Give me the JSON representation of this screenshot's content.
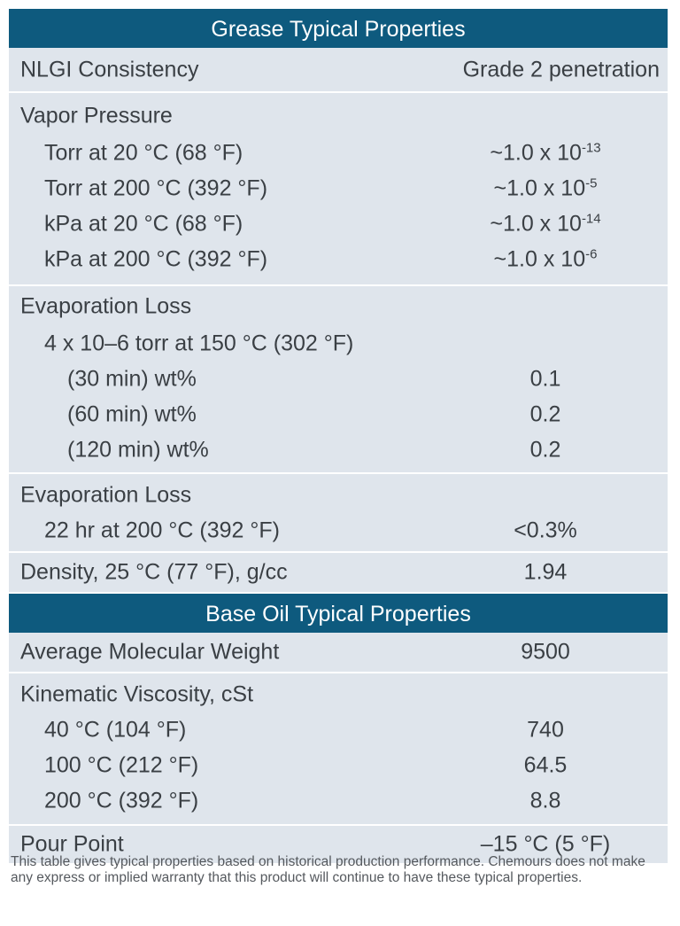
{
  "grease": {
    "header": "Grease Typical Properties",
    "nlgi": {
      "label": "NLGI Consistency",
      "value": "Grade 2 penetration"
    },
    "vapor": {
      "label": "Vapor Pressure",
      "rows": [
        {
          "label": "Torr at 20 °C (68 °F)",
          "base": "~1.0 x 10",
          "exp": "-13"
        },
        {
          "label": "Torr at 200 °C (392 °F)",
          "base": "~1.0 x 10",
          "exp": "-5"
        },
        {
          "label": "kPa at 20 °C (68 °F)",
          "base": "~1.0 x 10",
          "exp": "-14"
        },
        {
          "label": "kPa at 200 °C (392 °F)",
          "base": "~1.0 x 10",
          "exp": "-6"
        }
      ]
    },
    "evap1": {
      "label": "Evaporation Loss",
      "sub": "4 x 10–6 torr at 150 °C (302 °F)",
      "rows": [
        {
          "label": "(30 min) wt%",
          "value": "0.1"
        },
        {
          "label": "(60 min) wt%",
          "value": "0.2"
        },
        {
          "label": "(120 min) wt%",
          "value": "0.2"
        }
      ]
    },
    "evap2": {
      "label": "Evaporation Loss",
      "row": {
        "label": "22 hr at 200 °C (392 °F)",
        "value": "<0.3%"
      }
    },
    "density": {
      "label": "Density, 25 °C (77 °F), g/cc",
      "value": "1.94"
    }
  },
  "baseoil": {
    "header": "Base Oil Typical Properties",
    "mw": {
      "label": "Average Molecular Weight",
      "value": "9500"
    },
    "visc": {
      "label": "Kinematic Viscosity, cSt",
      "rows": [
        {
          "label": "40 °C (104 °F)",
          "value": "740"
        },
        {
          "label": "100 °C (212 °F)",
          "value": "64.5"
        },
        {
          "label": "200 °C (392 °F)",
          "value": "8.8"
        }
      ]
    },
    "pour": {
      "label": "Pour Point",
      "value": "–15 °C (5 °F)"
    }
  },
  "footnote": "This table gives typical properties based on historical production performance. Chemours does not make any express or implied warranty that this product will continue to have these typical properties."
}
